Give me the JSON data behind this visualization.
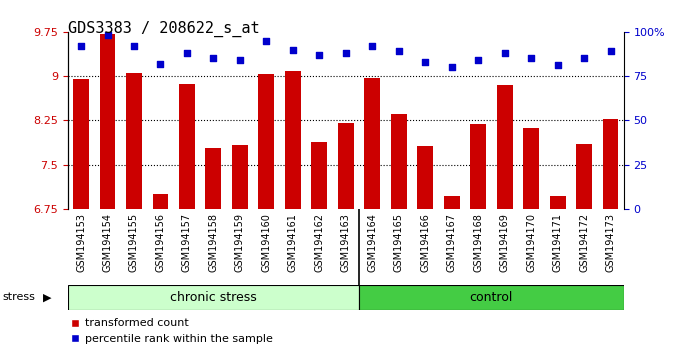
{
  "title": "GDS3383 / 208622_s_at",
  "categories": [
    "GSM194153",
    "GSM194154",
    "GSM194155",
    "GSM194156",
    "GSM194157",
    "GSM194158",
    "GSM194159",
    "GSM194160",
    "GSM194161",
    "GSM194162",
    "GSM194163",
    "GSM194164",
    "GSM194165",
    "GSM194166",
    "GSM194167",
    "GSM194168",
    "GSM194169",
    "GSM194170",
    "GSM194171",
    "GSM194172",
    "GSM194173"
  ],
  "bar_values": [
    8.95,
    9.72,
    9.05,
    7.0,
    8.87,
    7.78,
    7.83,
    9.03,
    9.08,
    7.88,
    8.2,
    8.97,
    8.35,
    7.82,
    6.97,
    8.18,
    8.85,
    8.12,
    6.97,
    7.85,
    8.28
  ],
  "dot_values_pct": [
    92,
    98,
    92,
    82,
    88,
    85,
    84,
    95,
    90,
    87,
    88,
    92,
    89,
    83,
    80,
    84,
    88,
    85,
    81,
    85,
    89
  ],
  "ylim_left": [
    6.75,
    9.75
  ],
  "ylim_right": [
    0,
    100
  ],
  "yticks_left": [
    6.75,
    7.5,
    8.25,
    9.0,
    9.75
  ],
  "ytick_labels_left": [
    "6.75",
    "7.5",
    "8.25",
    "9",
    "9.75"
  ],
  "yticks_right": [
    0,
    25,
    50,
    75,
    100
  ],
  "ytick_labels_right": [
    "0",
    "25",
    "50",
    "75",
    "100%"
  ],
  "bar_color": "#cc0000",
  "dot_color": "#0000cc",
  "background_plot": "#ffffff",
  "group1_label": "chronic stress",
  "group2_label": "control",
  "n_chronic": 11,
  "n_control": 10,
  "group1_color": "#ccffcc",
  "group2_color": "#44cc44",
  "stress_label": "stress",
  "legend_bar_label": "transformed count",
  "legend_dot_label": "percentile rank within the sample",
  "tick_fontsize": 8,
  "label_fontsize": 7,
  "group_fontsize": 9,
  "title_fontsize": 11
}
